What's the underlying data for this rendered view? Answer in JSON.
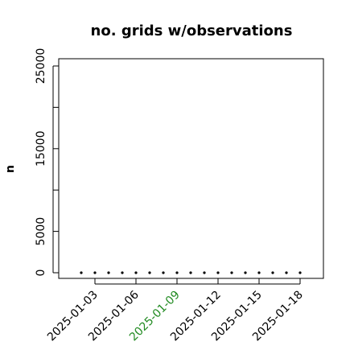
{
  "chart_data": {
    "type": "scatter",
    "title": "no. grids w/observations",
    "ylabel": "n",
    "x": [
      "2025-01-02",
      "2025-01-03",
      "2025-01-04",
      "2025-01-05",
      "2025-01-06",
      "2025-01-07",
      "2025-01-08",
      "2025-01-09",
      "2025-01-10",
      "2025-01-11",
      "2025-01-12",
      "2025-01-13",
      "2025-01-14",
      "2025-01-15",
      "2025-01-16",
      "2025-01-17",
      "2025-01-18"
    ],
    "values": [
      0,
      0,
      0,
      0,
      0,
      0,
      0,
      0,
      0,
      0,
      0,
      0,
      0,
      0,
      0,
      0,
      0
    ],
    "color": "#000000",
    "ylim": [
      -681,
      25875
    ],
    "yticks": [
      0,
      5000,
      10000,
      15000,
      20000,
      25000
    ],
    "ytick_labels": [
      0,
      5000,
      15000,
      25000
    ],
    "xticks": [
      "2025-01-03",
      "2025-01-06",
      "2025-01-09",
      "2025-01-12",
      "2025-01-15",
      "2025-01-18"
    ],
    "highlight_tick": "2025-01-09",
    "highlight_color": "#228b22"
  }
}
